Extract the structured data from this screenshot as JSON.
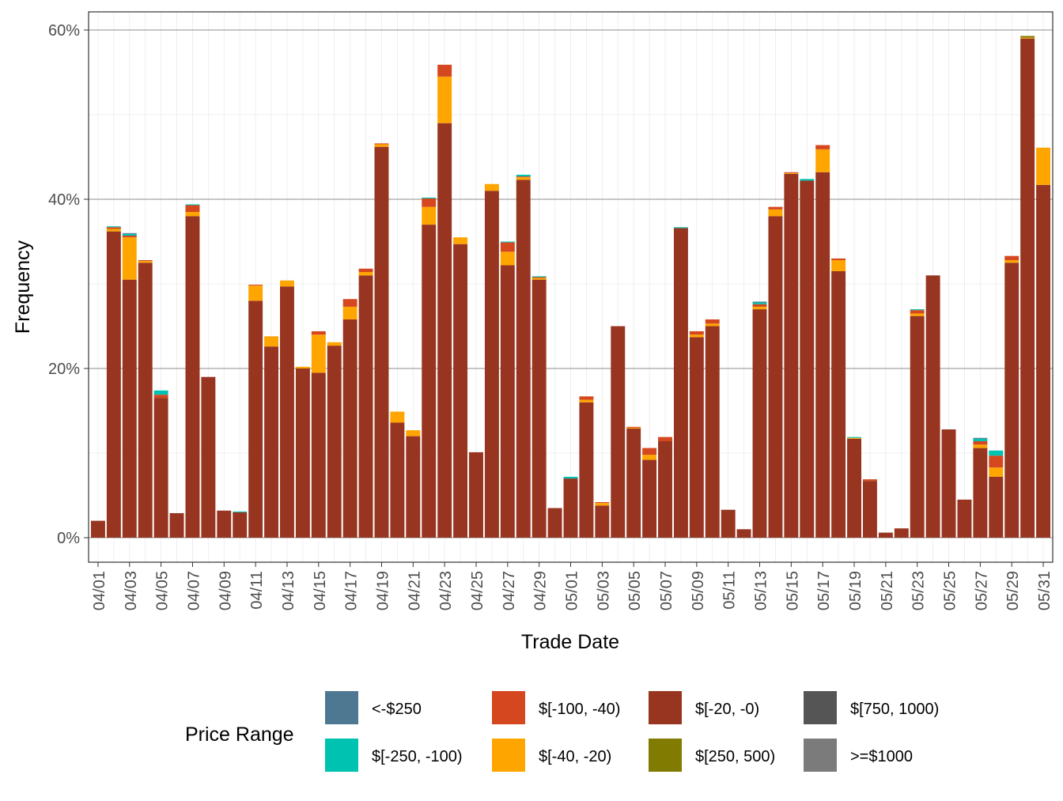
{
  "chart_data": {
    "type": "bar",
    "stacked": true,
    "xlabel": "Trade Date",
    "ylabel": "Frequency",
    "ylim": [
      0,
      0.62
    ],
    "y_ticks": [
      "0%",
      "20%",
      "40%",
      "60%"
    ],
    "grid": true,
    "legend_position": "bottom",
    "legend_title": "Price Range",
    "legend": [
      {
        "name": "<-$250",
        "color": "#4e7891"
      },
      {
        "name": "$[-250, -100)",
        "color": "#00c2b0"
      },
      {
        "name": "$[-100, -40)",
        "color": "#d4471f"
      },
      {
        "name": "$[-40, -20)",
        "color": "#ffa500"
      },
      {
        "name": "$[-20, -0)",
        "color": "#973521"
      },
      {
        "name": "$[250, 500)",
        "color": "#817c01"
      },
      {
        "name": "$[750, 1000)",
        "color": "#555555"
      },
      {
        "name": ">=$1000",
        "color": "#7b7b7b"
      }
    ],
    "categories": [
      "04/01",
      "04/02",
      "04/03",
      "04/04",
      "04/05",
      "04/06",
      "04/07",
      "04/08",
      "04/09",
      "04/10",
      "04/11",
      "04/12",
      "04/13",
      "04/14",
      "04/15",
      "04/16",
      "04/17",
      "04/18",
      "04/19",
      "04/20",
      "04/21",
      "04/22",
      "04/23",
      "04/24",
      "04/25",
      "04/26",
      "04/27",
      "04/28",
      "04/29",
      "04/30",
      "05/01",
      "05/02",
      "05/03",
      "05/04",
      "05/05",
      "05/06",
      "05/07",
      "05/08",
      "05/09",
      "05/10",
      "05/11",
      "05/12",
      "05/13",
      "05/14",
      "05/15",
      "05/16",
      "05/17",
      "05/18",
      "05/19",
      "05/20",
      "05/21",
      "05/22",
      "05/23",
      "05/24",
      "05/25",
      "05/26",
      "05/27",
      "05/28",
      "05/29",
      "05/30",
      "05/31"
    ],
    "tick_labels": [
      "04/01",
      "04/03",
      "04/05",
      "04/07",
      "04/09",
      "04/11",
      "04/13",
      "04/15",
      "04/17",
      "04/19",
      "04/21",
      "04/23",
      "04/25",
      "04/27",
      "04/29",
      "05/01",
      "05/03",
      "05/05",
      "05/07",
      "05/09",
      "05/11",
      "05/13",
      "05/15",
      "05/17",
      "05/19",
      "05/21",
      "05/23",
      "05/25",
      "05/27",
      "05/29",
      "05/31"
    ],
    "series": [
      {
        "name": "$[-20, -0)",
        "color": "#973521",
        "values": [
          0.02,
          0.362,
          0.305,
          0.325,
          0.165,
          0.029,
          0.38,
          0.19,
          0.032,
          0.03,
          0.28,
          0.226,
          0.297,
          0.2,
          0.195,
          0.227,
          0.258,
          0.31,
          0.462,
          0.136,
          0.12,
          0.37,
          0.49,
          0.347,
          0.101,
          0.41,
          0.322,
          0.423,
          0.305,
          0.035,
          0.07,
          0.16,
          0.038,
          0.25,
          0.129,
          0.092,
          0.114,
          0.366,
          0.237,
          0.25,
          0.033,
          0.01,
          0.27,
          0.38,
          0.43,
          0.422,
          0.432,
          0.315,
          0.117,
          0.067,
          0.006,
          0.011,
          0.262,
          0.31,
          0.128,
          0.045,
          0.106,
          0.072,
          0.325,
          0.59,
          0.417
        ]
      },
      {
        "name": "$[-40, -20)",
        "color": "#ffa500",
        "values": [
          0,
          0.003,
          0.05,
          0.002,
          0,
          0,
          0.005,
          0,
          0,
          0,
          0.018,
          0.012,
          0.007,
          0.002,
          0.045,
          0.004,
          0.015,
          0.004,
          0.003,
          0.013,
          0.007,
          0.021,
          0.055,
          0.008,
          0,
          0.008,
          0.016,
          0.003,
          0.002,
          0,
          0,
          0.003,
          0.003,
          0,
          0.001,
          0.006,
          0,
          0,
          0.003,
          0.003,
          0,
          0,
          0.003,
          0.008,
          0.001,
          0,
          0.027,
          0.013,
          0.001,
          0,
          0,
          0,
          0.003,
          0,
          0,
          0,
          0.004,
          0.011,
          0.003,
          0.001,
          0.044
        ]
      },
      {
        "name": "$[-100, -40)",
        "color": "#d4471f",
        "values": [
          0,
          0.002,
          0.002,
          0.001,
          0.004,
          0,
          0.008,
          0,
          0,
          0,
          0.001,
          0,
          0,
          0,
          0.004,
          0,
          0.009,
          0.004,
          0.001,
          0,
          0,
          0.01,
          0.014,
          0,
          0,
          0,
          0.011,
          0.001,
          0.001,
          0,
          0,
          0.004,
          0.001,
          0,
          0.001,
          0.008,
          0.005,
          0,
          0.004,
          0.005,
          0,
          0,
          0.003,
          0.003,
          0.001,
          0,
          0.005,
          0.002,
          0,
          0.002,
          0,
          0,
          0.004,
          0,
          0,
          0,
          0.004,
          0.014,
          0.005,
          0,
          0
        ]
      },
      {
        "name": "$[-250, -100)",
        "color": "#00c2b0",
        "values": [
          0,
          0.001,
          0.002,
          0,
          0.005,
          0,
          0.001,
          0,
          0,
          0.001,
          0,
          0,
          0,
          0,
          0,
          0,
          0,
          0,
          0,
          0,
          0,
          0.001,
          0,
          0,
          0,
          0,
          0.001,
          0.002,
          0.001,
          0,
          0.002,
          0,
          0,
          0,
          0,
          0,
          0,
          0.001,
          0,
          0,
          0,
          0,
          0.002,
          0,
          0,
          0.002,
          0,
          0,
          0.001,
          0,
          0,
          0,
          0.001,
          0,
          0,
          0,
          0.003,
          0.006,
          0,
          0,
          0
        ]
      },
      {
        "name": "<-$250",
        "color": "#4e7891",
        "values": [
          0,
          0,
          0.001,
          0,
          0,
          0,
          0,
          0,
          0,
          0,
          0,
          0,
          0,
          0,
          0,
          0,
          0,
          0,
          0,
          0,
          0,
          0,
          0,
          0,
          0,
          0,
          0,
          0,
          0,
          0,
          0,
          0,
          0,
          0,
          0,
          0,
          0,
          0,
          0,
          0,
          0,
          0,
          0.001,
          0,
          0,
          0,
          0,
          0,
          0,
          0,
          0,
          0,
          0,
          0,
          0,
          0,
          0.001,
          0,
          0,
          0,
          0
        ]
      },
      {
        "name": "$[250, 500)",
        "color": "#817c01",
        "values": [
          0,
          0,
          0,
          0,
          0,
          0,
          0,
          0,
          0,
          0,
          0,
          0,
          0,
          0,
          0,
          0,
          0,
          0,
          0,
          0,
          0,
          0,
          0,
          0,
          0,
          0,
          0,
          0,
          0,
          0,
          0,
          0,
          0,
          0,
          0,
          0,
          0,
          0,
          0,
          0,
          0,
          0,
          0,
          0,
          0,
          0,
          0,
          0,
          0,
          0,
          0,
          0,
          0,
          0,
          0,
          0,
          0,
          0,
          0,
          0.002,
          0
        ]
      }
    ]
  }
}
